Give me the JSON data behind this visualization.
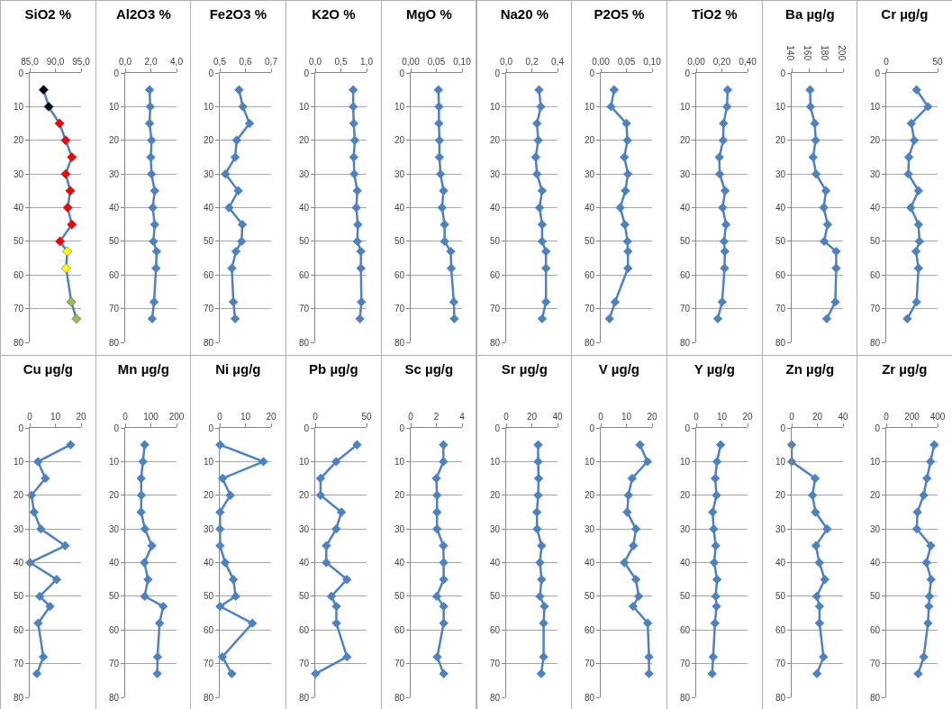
{
  "chart_data": [
    {
      "type": "line",
      "title": "SiO2 %",
      "xlim": [
        85,
        95
      ],
      "xticks": [
        {
          "value": 85,
          "label": "85,0"
        },
        {
          "value": 90,
          "label": "90,0"
        },
        {
          "value": 95,
          "label": "95,0"
        }
      ],
      "ylim": [
        80,
        0
      ],
      "yticks": [
        0,
        10,
        20,
        30,
        40,
        50,
        60,
        70,
        80
      ],
      "grid": "y",
      "marker": "diamond",
      "series": [
        {
          "color": "#4f81bd",
          "colors": [
            "#000000",
            "#000000",
            "#ff0000",
            "#ff0000",
            "#ff0000",
            "#ff0000",
            "#ff0000",
            "#ff0000",
            "#ff0000",
            "#ff0000",
            "#ffff00",
            "#ffff00",
            "#9bbb59",
            "#9bbb59"
          ],
          "x": [
            87.7,
            88.7,
            90.8,
            92.0,
            93.2,
            92.0,
            92.9,
            92.4,
            93.2,
            90.9,
            92.3,
            92.1,
            93.1,
            94.1
          ],
          "values": [
            5,
            10,
            15,
            20,
            25,
            30,
            35,
            40,
            45,
            50,
            53,
            58,
            68,
            73
          ]
        }
      ]
    },
    {
      "type": "line",
      "title": "Al2O3 %",
      "xlim": [
        0,
        4
      ],
      "xticks": [
        {
          "value": 0,
          "label": "0,0"
        },
        {
          "value": 2,
          "label": "2,0"
        },
        {
          "value": 4,
          "label": "4,0"
        }
      ],
      "ylim": [
        80,
        0
      ],
      "yticks": [
        0,
        10,
        20,
        30,
        40,
        50,
        60,
        70,
        80
      ],
      "grid": "y",
      "marker": "diamond",
      "series": [
        {
          "color": "#4f81bd",
          "x": [
            1.9,
            1.95,
            1.9,
            2.05,
            2.0,
            2.05,
            2.3,
            2.15,
            2.3,
            2.2,
            2.45,
            2.4,
            2.25,
            2.1
          ],
          "values": [
            5,
            10,
            15,
            20,
            25,
            30,
            35,
            40,
            45,
            50,
            53,
            58,
            68,
            73
          ]
        }
      ]
    },
    {
      "type": "line",
      "title": "Fe2O3 %",
      "xlim": [
        0.5,
        0.7
      ],
      "xticks": [
        {
          "value": 0.5,
          "label": "0,5"
        },
        {
          "value": 0.6,
          "label": "0,6"
        },
        {
          "value": 0.7,
          "label": "0,7"
        }
      ],
      "ylim": [
        80,
        0
      ],
      "yticks": [
        0,
        10,
        20,
        30,
        40,
        50,
        60,
        70,
        80
      ],
      "grid": "y",
      "marker": "diamond",
      "series": [
        {
          "color": "#4f81bd",
          "x": [
            0.575,
            0.59,
            0.616,
            0.566,
            0.56,
            0.522,
            0.572,
            0.536,
            0.588,
            0.585,
            0.563,
            0.547,
            0.553,
            0.56
          ],
          "values": [
            5,
            10,
            15,
            20,
            25,
            30,
            35,
            40,
            45,
            50,
            53,
            58,
            68,
            73
          ]
        }
      ]
    },
    {
      "type": "line",
      "title": "K2O %",
      "xlim": [
        0,
        1
      ],
      "xticks": [
        {
          "value": 0,
          "label": "0,0"
        },
        {
          "value": 0.5,
          "label": "0,5"
        },
        {
          "value": 1,
          "label": "1,0"
        }
      ],
      "ylim": [
        80,
        0
      ],
      "yticks": [
        0,
        10,
        20,
        30,
        40,
        50,
        60,
        70,
        80
      ],
      "grid": "y",
      "marker": "diamond",
      "series": [
        {
          "color": "#4f81bd",
          "x": [
            0.74,
            0.74,
            0.75,
            0.77,
            0.75,
            0.76,
            0.82,
            0.8,
            0.83,
            0.82,
            0.89,
            0.89,
            0.9,
            0.87
          ],
          "values": [
            5,
            10,
            15,
            20,
            25,
            30,
            35,
            40,
            45,
            50,
            53,
            58,
            68,
            73
          ]
        }
      ]
    },
    {
      "type": "line",
      "title": "MgO %",
      "xlim": [
        0,
        0.1
      ],
      "xticks": [
        {
          "value": 0,
          "label": "0,00"
        },
        {
          "value": 0.05,
          "label": "0,05"
        },
        {
          "value": 0.1,
          "label": "0,10"
        }
      ],
      "ylim": [
        80,
        0
      ],
      "yticks": [
        0,
        10,
        20,
        30,
        40,
        50,
        60,
        70,
        80
      ],
      "grid": "y",
      "marker": "diamond",
      "series": [
        {
          "color": "#4f81bd",
          "x": [
            0.054,
            0.055,
            0.055,
            0.056,
            0.056,
            0.058,
            0.064,
            0.061,
            0.066,
            0.066,
            0.078,
            0.079,
            0.084,
            0.085
          ],
          "values": [
            5,
            10,
            15,
            20,
            25,
            30,
            35,
            40,
            45,
            50,
            53,
            58,
            68,
            73
          ]
        }
      ]
    },
    {
      "type": "line",
      "title": "Na20 %",
      "xlim": [
        0,
        0.4
      ],
      "xticks": [
        {
          "value": 0,
          "label": "0,0"
        },
        {
          "value": 0.2,
          "label": "0,2"
        },
        {
          "value": 0.4,
          "label": "0,4"
        }
      ],
      "ylim": [
        80,
        0
      ],
      "yticks": [
        0,
        10,
        20,
        30,
        40,
        50,
        60,
        70,
        80
      ],
      "grid": "y",
      "marker": "diamond",
      "series": [
        {
          "color": "#4f81bd",
          "x": [
            0.256,
            0.27,
            0.24,
            0.25,
            0.23,
            0.24,
            0.28,
            0.26,
            0.28,
            0.28,
            0.31,
            0.31,
            0.31,
            0.28
          ],
          "values": [
            5,
            10,
            15,
            20,
            25,
            30,
            35,
            40,
            45,
            50,
            53,
            58,
            68,
            73
          ]
        }
      ]
    },
    {
      "type": "line",
      "title": "P2O5 %",
      "xlim": [
        0,
        0.1
      ],
      "xticks": [
        {
          "value": 0,
          "label": "0,00"
        },
        {
          "value": 0.05,
          "label": "0,05"
        },
        {
          "value": 0.1,
          "label": "0,10"
        }
      ],
      "ylim": [
        80,
        0
      ],
      "yticks": [
        0,
        10,
        20,
        30,
        40,
        50,
        60,
        70,
        80
      ],
      "grid": "y",
      "marker": "diamond",
      "series": [
        {
          "color": "#4f81bd",
          "x": [
            0.026,
            0.02,
            0.05,
            0.052,
            0.046,
            0.053,
            0.048,
            0.038,
            0.047,
            0.052,
            0.053,
            0.053,
            0.028,
            0.017
          ],
          "values": [
            5,
            10,
            15,
            20,
            25,
            30,
            35,
            40,
            45,
            50,
            53,
            58,
            68,
            73
          ]
        }
      ]
    },
    {
      "type": "line",
      "title": "TiO2 %",
      "xlim": [
        0,
        0.4
      ],
      "xticks": [
        {
          "value": 0,
          "label": "0,00"
        },
        {
          "value": 0.2,
          "label": "0,20"
        },
        {
          "value": 0.4,
          "label": "0,40"
        }
      ],
      "ylim": [
        80,
        0
      ],
      "yticks": [
        0,
        10,
        20,
        30,
        40,
        50,
        60,
        70,
        80
      ],
      "grid": "y",
      "marker": "diamond",
      "series": [
        {
          "color": "#4f81bd",
          "x": [
            0.245,
            0.24,
            0.213,
            0.21,
            0.18,
            0.183,
            0.225,
            0.206,
            0.232,
            0.217,
            0.223,
            0.221,
            0.202,
            0.168
          ],
          "values": [
            5,
            10,
            15,
            20,
            25,
            30,
            35,
            40,
            45,
            50,
            53,
            58,
            68,
            73
          ]
        }
      ]
    },
    {
      "type": "line",
      "title": "Ba µg/g",
      "xlim": [
        140,
        200
      ],
      "xticks": [
        140,
        160,
        180,
        200
      ],
      "ylim": [
        80,
        0
      ],
      "yticks": [
        0,
        10,
        20,
        30,
        40,
        50,
        60,
        70,
        80
      ],
      "grid": "y",
      "marker": "diamond",
      "series": [
        {
          "color": "#4f81bd",
          "x": [
            161.5,
            162,
            167,
            168,
            165,
            168.5,
            180,
            177.5,
            182,
            178,
            192,
            192,
            191,
            181
          ],
          "values": [
            5,
            10,
            15,
            20,
            25,
            30,
            35,
            40,
            45,
            50,
            53,
            58,
            68,
            73
          ]
        }
      ]
    },
    {
      "type": "line",
      "title": "Cr µg/g",
      "xlim": [
        0,
        50
      ],
      "xticks": [
        0,
        50
      ],
      "ylim": [
        80,
        0
      ],
      "yticks": [
        0,
        10,
        20,
        30,
        40,
        50,
        60,
        70,
        80
      ],
      "grid": "y",
      "marker": "diamond",
      "series": [
        {
          "color": "#4f81bd",
          "x": [
            29.5,
            40.6,
            24.4,
            27.3,
            22,
            21.5,
            31.4,
            23.9,
            31.4,
            32.4,
            29,
            31.4,
            29.5,
            20.5
          ],
          "values": [
            5,
            10,
            15,
            20,
            25,
            30,
            35,
            40,
            45,
            50,
            53,
            58,
            68,
            73
          ]
        }
      ]
    },
    {
      "type": "line",
      "title": "Cu µg/g",
      "xlim": [
        0,
        20
      ],
      "xticks": [
        0,
        10,
        20
      ],
      "ylim": [
        80,
        0
      ],
      "yticks": [
        0,
        10,
        20,
        30,
        40,
        50,
        60,
        70,
        80
      ],
      "grid": "y",
      "marker": "diamond",
      "series": [
        {
          "color": "#4f81bd",
          "x": [
            15.9,
            3.2,
            6.1,
            0.7,
            1.7,
            4.3,
            13.8,
            0.1,
            10.5,
            3.9,
            7.9,
            3.3,
            5.3,
            2.8
          ],
          "values": [
            5,
            10,
            15,
            20,
            25,
            30,
            35,
            40,
            45,
            50,
            53,
            58,
            68,
            73
          ]
        }
      ]
    },
    {
      "type": "line",
      "title": "Mn µg/g",
      "xlim": [
        0,
        200
      ],
      "xticks": [
        0,
        100,
        200
      ],
      "ylim": [
        80,
        0
      ],
      "yticks": [
        0,
        10,
        20,
        30,
        40,
        50,
        60,
        70,
        80
      ],
      "grid": "y",
      "marker": "diamond",
      "series": [
        {
          "color": "#4f81bd",
          "x": [
            76,
            69,
            62,
            63,
            62,
            77,
            104,
            75,
            89,
            76,
            148,
            134,
            126,
            125
          ],
          "values": [
            5,
            10,
            15,
            20,
            25,
            30,
            35,
            40,
            45,
            50,
            53,
            58,
            68,
            73
          ]
        }
      ]
    },
    {
      "type": "line",
      "title": "Ni µg/g",
      "xlim": [
        0,
        20
      ],
      "xticks": [
        0,
        10,
        20
      ],
      "ylim": [
        80,
        0
      ],
      "yticks": [
        0,
        10,
        20,
        30,
        40,
        50,
        60,
        70,
        80
      ],
      "grid": "y",
      "marker": "diamond",
      "series": [
        {
          "color": "#4f81bd",
          "x": [
            0.1,
            17,
            1.1,
            4.1,
            0.1,
            0.1,
            0.1,
            2.1,
            5.3,
            6.2,
            0.1,
            12.7,
            1,
            4.7
          ],
          "values": [
            5,
            10,
            15,
            20,
            25,
            30,
            35,
            40,
            45,
            50,
            53,
            58,
            68,
            73
          ]
        }
      ]
    },
    {
      "type": "line",
      "title": "Pb µg/g",
      "xlim": [
        0,
        50
      ],
      "xticks": [
        0,
        50
      ],
      "ylim": [
        80,
        0
      ],
      "yticks": [
        0,
        10,
        20,
        30,
        40,
        50,
        60,
        70,
        80
      ],
      "grid": "y",
      "marker": "diamond",
      "series": [
        {
          "color": "#4f81bd",
          "x": [
            40.7,
            20.4,
            5.2,
            5.2,
            25.5,
            20.4,
            10.8,
            10.8,
            30.9,
            15.7,
            20.6,
            20.6,
            30.9,
            0.3
          ],
          "values": [
            5,
            10,
            15,
            20,
            25,
            30,
            35,
            40,
            45,
            50,
            53,
            58,
            68,
            73
          ]
        }
      ]
    },
    {
      "type": "line",
      "title": "Sc µg/g",
      "xlim": [
        0,
        4
      ],
      "xticks": [
        0,
        2,
        4
      ],
      "ylim": [
        80,
        0
      ],
      "yticks": [
        0,
        10,
        20,
        30,
        40,
        50,
        60,
        70,
        80
      ],
      "grid": "y",
      "marker": "diamond",
      "series": [
        {
          "color": "#4f81bd",
          "x": [
            2.55,
            2.55,
            2.0,
            2.05,
            2.05,
            2.05,
            2.55,
            2.57,
            2.57,
            2.03,
            2.57,
            2.57,
            2.07,
            2.57
          ],
          "values": [
            5,
            10,
            15,
            20,
            25,
            30,
            35,
            40,
            45,
            50,
            53,
            58,
            68,
            73
          ]
        }
      ]
    },
    {
      "type": "line",
      "title": "Sr µg/g",
      "xlim": [
        0,
        40
      ],
      "xticks": [
        0,
        20,
        40
      ],
      "ylim": [
        80,
        0
      ],
      "yticks": [
        0,
        10,
        20,
        30,
        40,
        50,
        60,
        70,
        80
      ],
      "grid": "y",
      "marker": "diamond",
      "series": [
        {
          "color": "#4f81bd",
          "x": [
            24.9,
            24.9,
            25.3,
            24.9,
            23.9,
            24.1,
            27.6,
            26.3,
            27.6,
            26.3,
            29.8,
            29.2,
            29.2,
            27.3
          ],
          "values": [
            5,
            10,
            15,
            20,
            25,
            30,
            35,
            40,
            45,
            50,
            53,
            58,
            68,
            73
          ]
        }
      ]
    },
    {
      "type": "line",
      "title": "V µg/g",
      "xlim": [
        0,
        20
      ],
      "xticks": [
        0,
        10,
        20
      ],
      "ylim": [
        80,
        0
      ],
      "yticks": [
        0,
        10,
        20,
        30,
        40,
        50,
        60,
        70,
        80
      ],
      "grid": "y",
      "marker": "diamond",
      "series": [
        {
          "color": "#4f81bd",
          "x": [
            15.3,
            18.2,
            12.2,
            10.8,
            10.3,
            13.7,
            12.7,
            9.2,
            13.7,
            14.8,
            12.6,
            18.3,
            18.8,
            18.8
          ],
          "values": [
            5,
            10,
            15,
            20,
            25,
            30,
            35,
            40,
            45,
            50,
            53,
            58,
            68,
            73
          ]
        }
      ]
    },
    {
      "type": "line",
      "title": "Y µg/g",
      "xlim": [
        0,
        20
      ],
      "xticks": [
        0,
        10,
        20
      ],
      "ylim": [
        80,
        0
      ],
      "yticks": [
        0,
        10,
        20,
        30,
        40,
        50,
        60,
        70,
        80
      ],
      "grid": "y",
      "marker": "diamond",
      "series": [
        {
          "color": "#4f81bd",
          "x": [
            9.5,
            8.1,
            7.4,
            7.9,
            6.4,
            6.8,
            7.6,
            7.0,
            8.1,
            7.6,
            7.9,
            7.3,
            6.6,
            6.2
          ],
          "values": [
            5,
            10,
            15,
            20,
            25,
            30,
            35,
            40,
            45,
            50,
            53,
            58,
            68,
            73
          ]
        }
      ]
    },
    {
      "type": "line",
      "title": "Zn µg/g",
      "xlim": [
        0,
        40
      ],
      "xticks": [
        0,
        20,
        40
      ],
      "ylim": [
        80,
        0
      ],
      "yticks": [
        0,
        10,
        20,
        30,
        40,
        50,
        60,
        70,
        80
      ],
      "grid": "y",
      "marker": "diamond",
      "series": [
        {
          "color": "#4f81bd",
          "x": [
            0,
            0,
            18.3,
            16.2,
            18.5,
            27.6,
            18.9,
            21.5,
            25.8,
            19.5,
            21.7,
            21.7,
            24.8,
            19.7
          ],
          "values": [
            5,
            10,
            15,
            20,
            25,
            30,
            35,
            40,
            45,
            50,
            53,
            58,
            68,
            73
          ]
        }
      ]
    },
    {
      "type": "line",
      "title": "Zr µg/g",
      "xlim": [
        0,
        400
      ],
      "xticks": [
        0,
        200,
        400
      ],
      "ylim": [
        80,
        0
      ],
      "yticks": [
        0,
        10,
        20,
        30,
        40,
        50,
        60,
        70,
        80
      ],
      "grid": "y",
      "marker": "diamond",
      "series": [
        {
          "color": "#4f81bd",
          "x": [
            374,
            345,
            317,
            291,
            243,
            238,
            347,
            313,
            349,
            336,
            332,
            325,
            292,
            249
          ],
          "values": [
            5,
            10,
            15,
            20,
            25,
            30,
            35,
            40,
            45,
            50,
            53,
            58,
            68,
            73
          ]
        }
      ]
    }
  ]
}
